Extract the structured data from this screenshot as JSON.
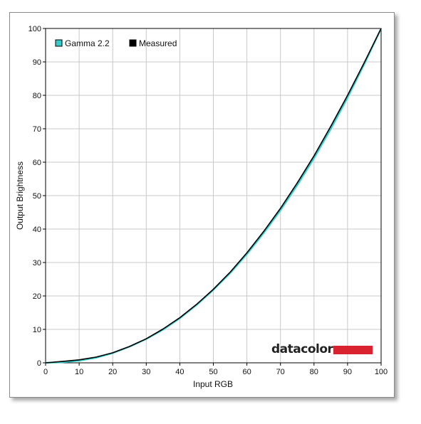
{
  "chart_data": {
    "type": "line",
    "xlabel": "Input RGB",
    "ylabel": "Output Brightness",
    "xlim": [
      0,
      100
    ],
    "ylim": [
      0,
      100
    ],
    "xticks": [
      0,
      10,
      20,
      30,
      40,
      50,
      60,
      70,
      80,
      90,
      100
    ],
    "yticks": [
      0,
      10,
      20,
      30,
      40,
      50,
      60,
      70,
      80,
      90,
      100
    ],
    "grid": true,
    "legend_position": "top-left",
    "series": [
      {
        "name": "Gamma 2.2",
        "color": "#33cccc",
        "x": [
          0,
          5,
          10,
          15,
          20,
          25,
          30,
          35,
          40,
          45,
          50,
          55,
          60,
          65,
          70,
          75,
          80,
          85,
          90,
          95,
          100
        ],
        "y": [
          0,
          0.14,
          0.63,
          1.5,
          2.9,
          4.8,
          7.1,
          9.9,
          13.3,
          17.3,
          21.8,
          26.8,
          32.5,
          38.8,
          45.6,
          53.1,
          61.2,
          69.9,
          79.3,
          89.3,
          100
        ]
      },
      {
        "name": "Measured",
        "color": "#000000",
        "x": [
          0,
          5,
          10,
          15,
          20,
          25,
          30,
          35,
          40,
          45,
          50,
          55,
          60,
          65,
          70,
          75,
          80,
          85,
          90,
          95,
          100
        ],
        "y": [
          0,
          0.4,
          0.9,
          1.7,
          3.0,
          4.9,
          7.2,
          10.1,
          13.5,
          17.5,
          22.0,
          27.1,
          32.9,
          39.3,
          46.2,
          53.8,
          61.9,
          70.7,
          80.0,
          89.8,
          100
        ]
      }
    ],
    "logo": {
      "text": "datacolor",
      "bar_color": "#d9232e"
    }
  }
}
